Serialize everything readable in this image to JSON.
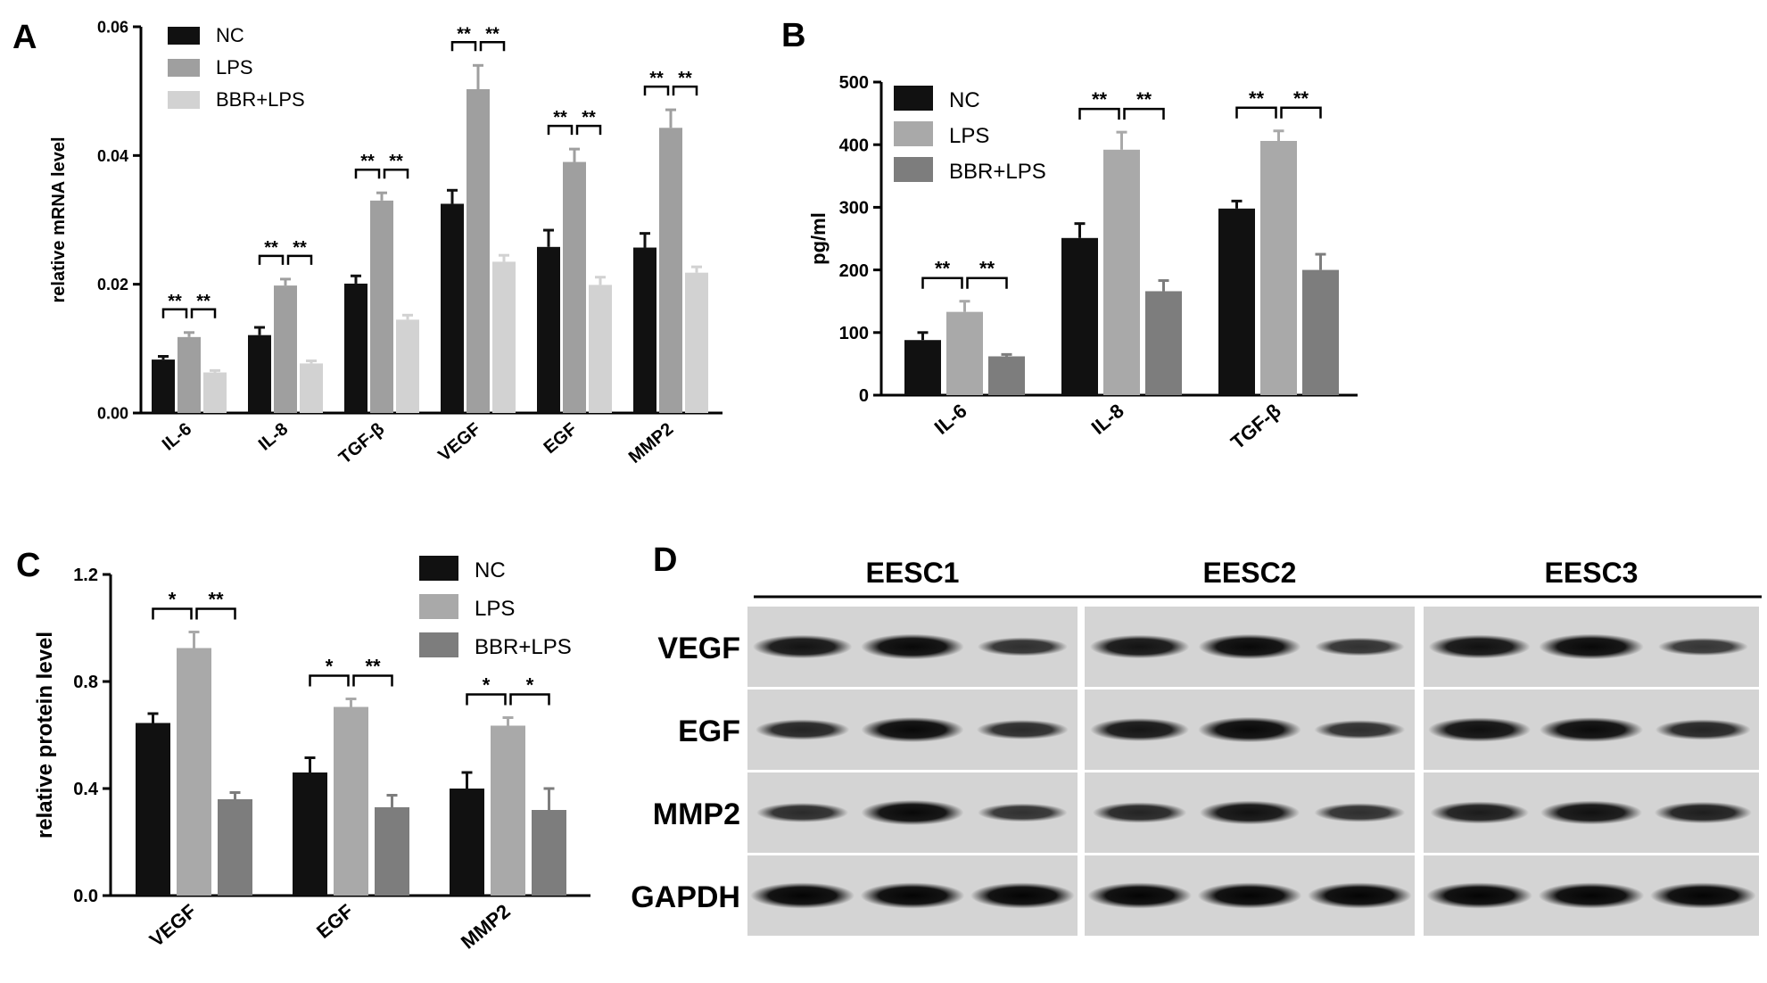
{
  "chart_data": [
    {
      "panel": "A",
      "type": "bar",
      "ylabel": "relative mRNA  level",
      "ylim": [
        0,
        0.06
      ],
      "yticks": [
        "0.00",
        "0.02",
        "0.04",
        "0.06"
      ],
      "categories": [
        "IL-6",
        "IL-8",
        "TGF-β",
        "VEGF",
        "EGF",
        "MMP2"
      ],
      "series": [
        {
          "name": "NC",
          "color": "#111111",
          "values": [
            0.0083,
            0.0121,
            0.0201,
            0.0325,
            0.0258,
            0.0257
          ],
          "errors": [
            0.0005,
            0.0012,
            0.0012,
            0.0021,
            0.0026,
            0.0022
          ]
        },
        {
          "name": "LPS",
          "color": "#9f9f9f",
          "values": [
            0.0118,
            0.0198,
            0.033,
            0.0503,
            0.039,
            0.0443
          ],
          "errors": [
            0.0007,
            0.001,
            0.0012,
            0.0037,
            0.002,
            0.0028
          ]
        },
        {
          "name": "BBR+LPS",
          "color": "#d2d2d2",
          "values": [
            0.0063,
            0.0077,
            0.0145,
            0.0235,
            0.0199,
            0.0218
          ],
          "errors": [
            0.0003,
            0.0004,
            0.0007,
            0.001,
            0.0012,
            0.0009
          ]
        }
      ],
      "significance": [
        [
          "**",
          "**"
        ],
        [
          "**",
          "**"
        ],
        [
          "**",
          "**"
        ],
        [
          "**",
          "**"
        ],
        [
          "**",
          "**"
        ],
        [
          "**",
          "**"
        ]
      ],
      "legend_position": "top-left"
    },
    {
      "panel": "B",
      "type": "bar",
      "ylabel": "pg/ml",
      "ylim": [
        0,
        500
      ],
      "yticks": [
        "0",
        "100",
        "200",
        "300",
        "400",
        "500"
      ],
      "categories": [
        "IL-6",
        "IL-8",
        "TGF-β"
      ],
      "series": [
        {
          "name": "NC",
          "color": "#111111",
          "values": [
            88,
            251,
            298
          ],
          "errors": [
            12,
            23,
            12
          ]
        },
        {
          "name": "LPS",
          "color": "#a9a9a9",
          "values": [
            133,
            392,
            406
          ],
          "errors": [
            17,
            28,
            16
          ]
        },
        {
          "name": "BBR+LPS",
          "color": "#7d7d7d",
          "values": [
            62,
            166,
            200
          ],
          "errors": [
            3,
            17,
            25
          ]
        }
      ],
      "significance": [
        [
          "**",
          "**"
        ],
        [
          "**",
          "**"
        ],
        [
          "**",
          "**"
        ]
      ],
      "legend_position": "top-left"
    },
    {
      "panel": "C",
      "type": "bar",
      "ylabel": "relative protein level",
      "ylim": [
        0,
        1.2
      ],
      "yticks": [
        "0.0",
        "0.4",
        "0.8",
        "1.2"
      ],
      "categories": [
        "VEGF",
        "EGF",
        "MMP2"
      ],
      "series": [
        {
          "name": "NC",
          "color": "#111111",
          "values": [
            0.645,
            0.46,
            0.4
          ],
          "errors": [
            0.035,
            0.055,
            0.06
          ]
        },
        {
          "name": "LPS",
          "color": "#a9a9a9",
          "values": [
            0.925,
            0.705,
            0.635
          ],
          "errors": [
            0.06,
            0.03,
            0.03
          ]
        },
        {
          "name": "BBR+LPS",
          "color": "#7d7d7d",
          "values": [
            0.36,
            0.33,
            0.32
          ],
          "errors": [
            0.025,
            0.045,
            0.08
          ]
        }
      ],
      "significance": [
        [
          "*",
          "**"
        ],
        [
          "*",
          "**"
        ],
        [
          "*",
          "*"
        ]
      ],
      "legend_position": "top-right"
    }
  ],
  "panel_d": {
    "panel": "D",
    "groups": [
      "EESC1",
      "EESC2",
      "EESC3"
    ],
    "rows": [
      "VEGF",
      "EGF",
      "MMP2",
      "GAPDH"
    ],
    "band_intensity": [
      [
        [
          0.8,
          0.92,
          0.5
        ],
        [
          0.8,
          0.9,
          0.48
        ],
        [
          0.82,
          0.92,
          0.45
        ]
      ],
      [
        [
          0.62,
          0.9,
          0.55
        ],
        [
          0.78,
          0.92,
          0.52
        ],
        [
          0.85,
          0.88,
          0.62
        ]
      ],
      [
        [
          0.55,
          0.9,
          0.48
        ],
        [
          0.62,
          0.82,
          0.52
        ],
        [
          0.72,
          0.82,
          0.68
        ]
      ],
      [
        [
          0.95,
          0.95,
          0.95
        ],
        [
          0.95,
          0.95,
          0.95
        ],
        [
          0.95,
          0.95,
          0.95
        ]
      ]
    ]
  }
}
